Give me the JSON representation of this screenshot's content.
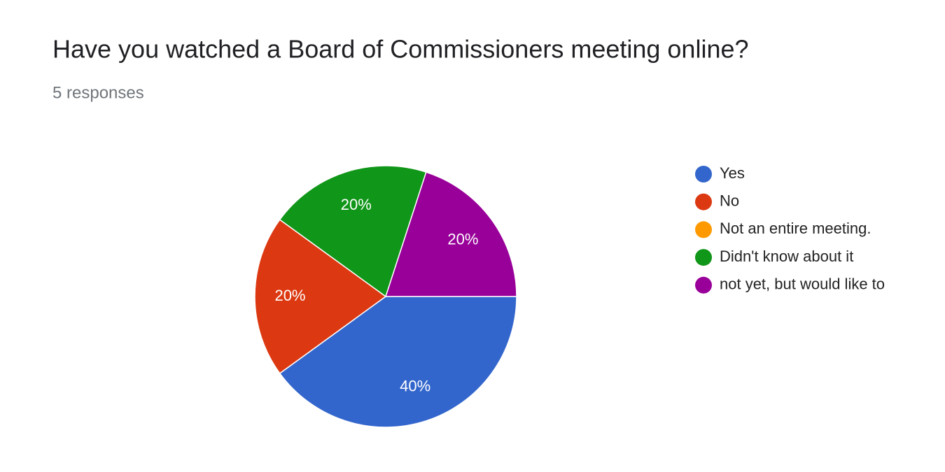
{
  "chart_data": {
    "type": "pie",
    "title": "Have you watched a Board of Commissioners meeting online?",
    "subtitle": "5 responses",
    "categories": [
      "Yes",
      "No",
      "Not an entire meeting.",
      "Didn't know about it",
      "not yet, but would like to"
    ],
    "values": [
      40,
      20,
      0,
      20,
      20
    ],
    "value_labels": [
      "40%",
      "20%",
      null,
      "20%",
      "20%"
    ],
    "colors": [
      "#3366cc",
      "#dc3912",
      "#ff9900",
      "#109618",
      "#990099"
    ],
    "legend": "right"
  }
}
